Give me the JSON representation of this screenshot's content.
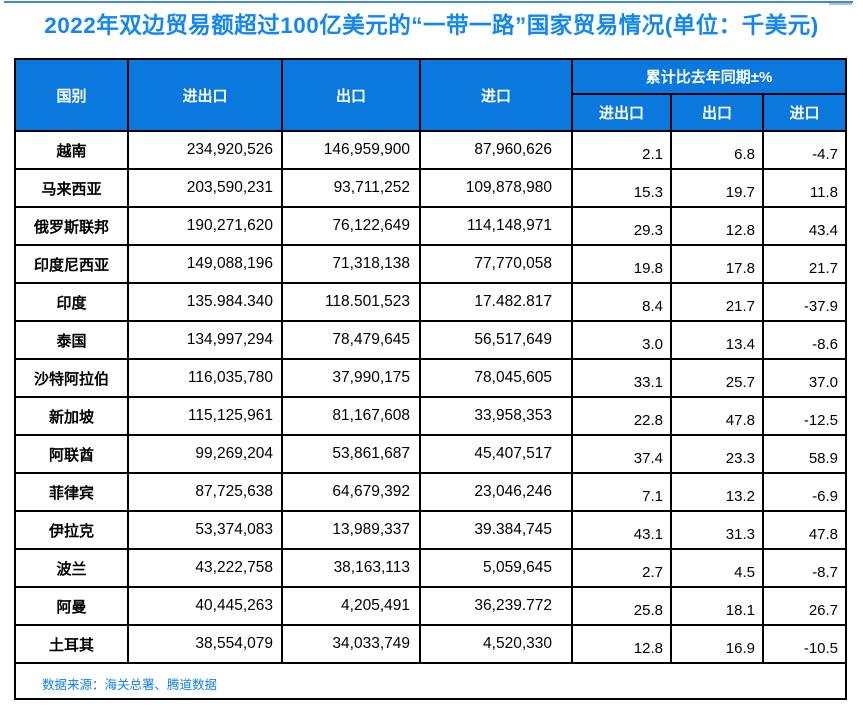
{
  "title": "2022年双边贸易额超过100亿美元的“一带一路”国家贸易情况(单位：千美元)",
  "colors": {
    "header_bg": "#0A78DC",
    "title_blue": "#1287F2",
    "footer_blue": "#0F80E8",
    "top_line_blue": "#3E86E0",
    "border": "#000000"
  },
  "table": {
    "headers": {
      "country": "国别",
      "total": "进出口",
      "export": "出口",
      "import": "进口",
      "yoy_group": "累计比去年同期±%",
      "yoy_total": "进出口",
      "yoy_export": "出口",
      "yoy_import": "进口"
    },
    "rows": [
      {
        "country": "越南",
        "total": "234,920,526",
        "export": "146,959,900",
        "import": "87,960,626",
        "yoy_total": "2.1",
        "yoy_export": "6.8",
        "yoy_import": "-4.7"
      },
      {
        "country": "马来西亚",
        "total": "203,590,231",
        "export": "93,711,252",
        "import": "109,878,980",
        "yoy_total": "15.3",
        "yoy_export": "19.7",
        "yoy_import": "11.8"
      },
      {
        "country": "俄罗斯联邦",
        "total": "190,271,620",
        "export": "76,122,649",
        "import": "114,148,971",
        "yoy_total": "29.3",
        "yoy_export": "12.8",
        "yoy_import": "43.4"
      },
      {
        "country": "印度尼西亚",
        "total": "149,088,196",
        "export": "71,318,138",
        "import": "77,770,058",
        "yoy_total": "19.8",
        "yoy_export": "17.8",
        "yoy_import": "21.7"
      },
      {
        "country": "印度",
        "total": "135.984.340",
        "export": "118.501,523",
        "import": "17.482.817",
        "yoy_total": "8.4",
        "yoy_export": "21.7",
        "yoy_import": "-37.9"
      },
      {
        "country": "泰国",
        "total": "134,997,294",
        "export": "78,479,645",
        "import": "56,517,649",
        "yoy_total": "3.0",
        "yoy_export": "13.4",
        "yoy_import": "-8.6"
      },
      {
        "country": "沙特阿拉伯",
        "total": "116,035,780",
        "export": "37,990,175",
        "import": "78,045,605",
        "yoy_total": "33.1",
        "yoy_export": "25.7",
        "yoy_import": "37.0"
      },
      {
        "country": "新加坡",
        "total": "115,125,961",
        "export": "81,167,608",
        "import": "33,958,353",
        "yoy_total": "22.8",
        "yoy_export": "47.8",
        "yoy_import": "-12.5"
      },
      {
        "country": "阿联酋",
        "total": "99,269,204",
        "export": "53,861,687",
        "import": "45,407,517",
        "yoy_total": "37.4",
        "yoy_export": "23.3",
        "yoy_import": "58.9"
      },
      {
        "country": "菲律宾",
        "total": "87,725,638",
        "export": "64,679,392",
        "import": "23,046,246",
        "yoy_total": "7.1",
        "yoy_export": "13.2",
        "yoy_import": "-6.9"
      },
      {
        "country": "伊拉克",
        "total": "53,374,083",
        "export": "13,989,337",
        "import": "39.384,745",
        "yoy_total": "43.1",
        "yoy_export": "31.3",
        "yoy_import": "47.8"
      },
      {
        "country": "波兰",
        "total": "43,222,758",
        "export": "38,163,113",
        "import": "5,059,645",
        "yoy_total": "2.7",
        "yoy_export": "4.5",
        "yoy_import": "-8.7"
      },
      {
        "country": "阿曼",
        "total": "40,445,263",
        "export": "4,205,491",
        "import": "36,239.772",
        "yoy_total": "25.8",
        "yoy_export": "18.1",
        "yoy_import": "26.7"
      },
      {
        "country": "土耳其",
        "total": "38,554,079",
        "export": "34,033,749",
        "import": "4,520,330",
        "yoy_total": "12.8",
        "yoy_export": "16.9",
        "yoy_import": "-10.5"
      }
    ]
  },
  "footer": {
    "source": "数据来源：海关总署、腾道数据"
  }
}
